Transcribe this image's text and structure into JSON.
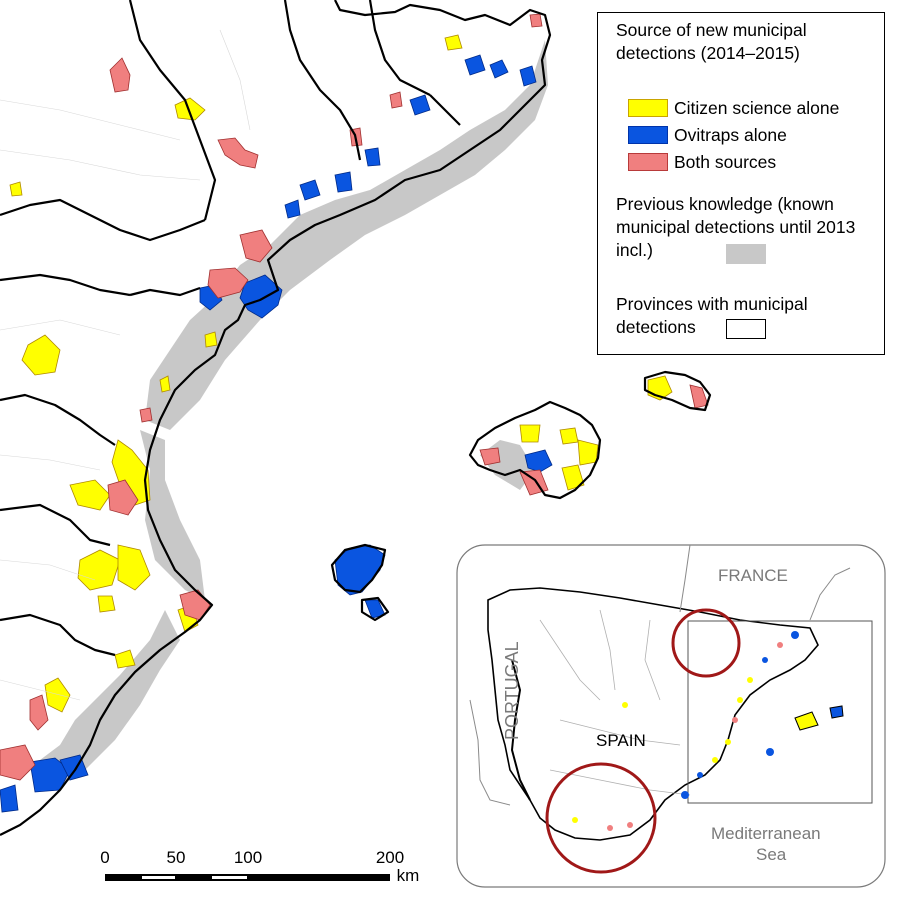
{
  "legend": {
    "title": "Source of new municipal detections (2014–2015)",
    "items": [
      {
        "label": "Citizen science alone",
        "color": "#ffff00",
        "border": "#c9a400"
      },
      {
        "label": "Ovitraps alone",
        "color": "#0a55e0",
        "border": "#0033aa"
      },
      {
        "label": "Both sources",
        "color": "#f07f7f",
        "border": "#b83a3a"
      }
    ],
    "previous_knowledge_label": "Previous knowledge (known municipal detections until 2013 incl.)",
    "previous_knowledge_color": "#c8c8c8",
    "provinces_label": "Provinces with municipal detections"
  },
  "scale_bar": {
    "ticks": [
      "0",
      "50",
      "100",
      "200"
    ],
    "unit": "km"
  },
  "inset": {
    "france_label": "FRANCE",
    "portugal_label": "PORTUGAL",
    "spain_label": "SPAIN",
    "sea_label_line1": "Mediterranean",
    "sea_label_line2": "Sea"
  },
  "colors": {
    "citizen": "#ffff00",
    "ovitrap": "#0a55e0",
    "both": "#f07f7f",
    "previous": "#c8c8c8",
    "highlight_circle": "#a01818"
  }
}
